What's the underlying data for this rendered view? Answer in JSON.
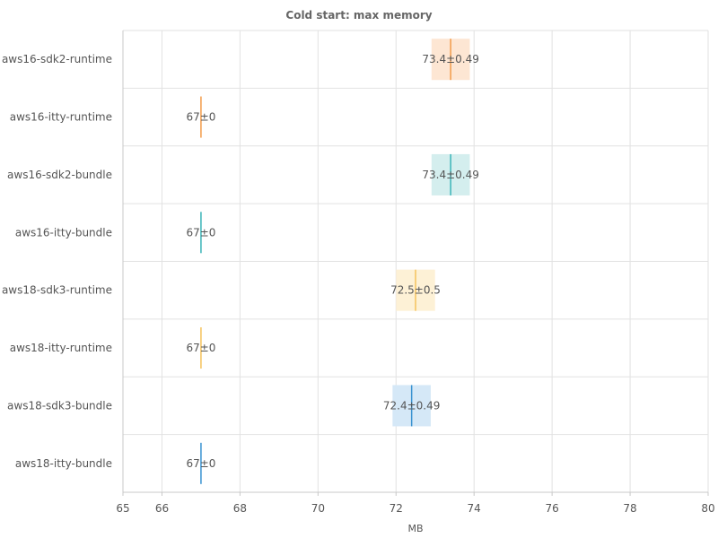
{
  "chart_data": {
    "type": "box",
    "title": "Cold start: max memory",
    "xlabel": "MB",
    "ylabel": "",
    "xlim": [
      65,
      80
    ],
    "xticks": [
      65,
      66,
      68,
      70,
      72,
      74,
      76,
      78,
      80
    ],
    "grid": true,
    "series": [
      {
        "name": "aws16-sdk2-runtime",
        "mean": 73.4,
        "std": 0.49,
        "label": "73.4±0.49",
        "color": "#f39c4a",
        "fill": "#fde6d3"
      },
      {
        "name": "aws16-itty-runtime",
        "mean": 67,
        "std": 0,
        "label": "67±0",
        "color": "#f39c4a",
        "fill": "#fde6d3"
      },
      {
        "name": "aws16-sdk2-bundle",
        "mean": 73.4,
        "std": 0.49,
        "label": "73.4±0.49",
        "color": "#3bb5b8",
        "fill": "#d4eeee"
      },
      {
        "name": "aws16-itty-bundle",
        "mean": 67,
        "std": 0,
        "label": "67±0",
        "color": "#3bb5b8",
        "fill": "#d4eeee"
      },
      {
        "name": "aws18-sdk3-runtime",
        "mean": 72.5,
        "std": 0.5,
        "label": "72.5±0.5",
        "color": "#f5c25c",
        "fill": "#fdf1d6"
      },
      {
        "name": "aws18-itty-runtime",
        "mean": 67,
        "std": 0,
        "label": "67±0",
        "color": "#f5c25c",
        "fill": "#fdf1d6"
      },
      {
        "name": "aws18-sdk3-bundle",
        "mean": 72.4,
        "std": 0.49,
        "label": "72.4±0.49",
        "color": "#3a93d1",
        "fill": "#d5e8f7"
      },
      {
        "name": "aws18-itty-bundle",
        "mean": 67,
        "std": 0,
        "label": "67±0",
        "color": "#3a93d1",
        "fill": "#d5e8f7"
      }
    ]
  }
}
